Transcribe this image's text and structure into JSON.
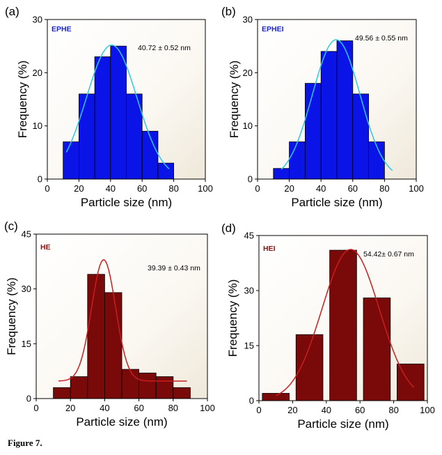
{
  "figure": {
    "caption": "Figure 7."
  },
  "chart_data": [
    {
      "type": "bar",
      "panel_label": "(a)",
      "sample_label": "EPHE",
      "annotation": "40.72 ± 0.52 nm",
      "x": [
        15,
        25,
        35,
        45,
        55,
        65,
        75
      ],
      "values": [
        7,
        16,
        23,
        25,
        16,
        9,
        3
      ],
      "bar_width": 10,
      "xlabel": "Particle size (nm)",
      "ylabel": "Frequency (%)",
      "xlim": [
        0,
        100
      ],
      "ylim": [
        0,
        30
      ],
      "xticks": [
        0,
        20,
        40,
        60,
        80,
        100
      ],
      "yticks": [
        0,
        10,
        20,
        30
      ],
      "bar_color": "#0a14e6",
      "label_color": "#1a22d8",
      "fit": {
        "type": "gaussian",
        "mean": 40.72,
        "sigma": 16,
        "peak": 25.2,
        "range": [
          12,
          77
        ],
        "color": "#2ec8e8"
      }
    },
    {
      "type": "bar",
      "panel_label": "(b)",
      "sample_label": "EPHEI",
      "annotation": "49.56 ± 0.55 nm",
      "x": [
        15,
        25,
        35,
        45,
        55,
        65,
        75
      ],
      "values": [
        2,
        7,
        18,
        24,
        26,
        16,
        7
      ],
      "bar_width": 10,
      "xlabel": "Particle size (nm)",
      "ylabel": "Frequency (%)",
      "xlim": [
        0,
        100
      ],
      "ylim": [
        0,
        30
      ],
      "xticks": [
        0,
        20,
        40,
        60,
        80,
        100
      ],
      "yticks": [
        0,
        10,
        20,
        30
      ],
      "bar_color": "#0a14e6",
      "label_color": "#1a22d8",
      "fit": {
        "type": "gaussian",
        "mean": 49.56,
        "sigma": 15,
        "peak": 26.2,
        "range": [
          15,
          85
        ],
        "color": "#2ec8e8"
      }
    },
    {
      "type": "bar",
      "panel_label": "(c)",
      "sample_label": "HE",
      "annotation": "39.39 ± 0.43 nm",
      "x": [
        15,
        25,
        35,
        45,
        55,
        65,
        75,
        85
      ],
      "values": [
        3,
        6,
        34,
        29,
        8,
        7,
        6,
        3
      ],
      "bar_width": 10,
      "xlabel": "Particle size (nm)",
      "ylabel": "Frequency (%)",
      "xlim": [
        0,
        100
      ],
      "ylim": [
        0,
        45
      ],
      "xticks": [
        0,
        20,
        40,
        60,
        80,
        100
      ],
      "yticks": [
        0,
        15,
        30,
        45
      ],
      "bar_color": "#7a0a0a",
      "label_color": "#8a1010",
      "fit": {
        "type": "gaussian",
        "mean": 39.39,
        "sigma": 7,
        "peak": 38,
        "baseline": 4.8,
        "range": [
          13,
          88
        ],
        "color": "#c81e1e"
      }
    },
    {
      "type": "bar",
      "panel_label": "(d)",
      "sample_label": "HEI",
      "annotation": "54.42± 0.67 nm",
      "x": [
        10,
        30,
        50,
        70,
        90
      ],
      "values": [
        2,
        18,
        41,
        28,
        10
      ],
      "bar_width": 16,
      "xlabel": "Particle size (nm)",
      "ylabel": "Frequency (%)",
      "xlim": [
        0,
        100
      ],
      "ylim": [
        0,
        45
      ],
      "xticks": [
        0,
        20,
        40,
        60,
        80,
        100
      ],
      "yticks": [
        0,
        15,
        30,
        45
      ],
      "bar_color": "#7a0a0a",
      "label_color": "#8a1010",
      "fit": {
        "type": "gaussian",
        "mean": 54.42,
        "sigma": 17,
        "peak": 41.2,
        "range": [
          10,
          92
        ],
        "color": "#c81e1e"
      }
    }
  ]
}
